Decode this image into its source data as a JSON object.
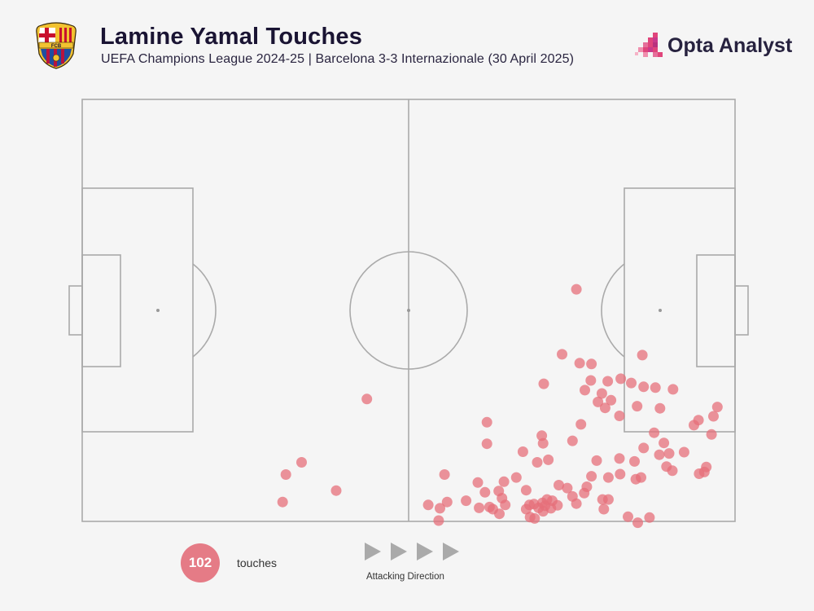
{
  "header": {
    "title": "Lamine Yamal Touches",
    "subtitle": "UEFA Champions League 2024-25 | Barcelona 3-3 Internazionale (30 April 2025)"
  },
  "brand": {
    "name": "Opta Analyst",
    "crest_name": "FC Barcelona crest",
    "crest_letters": "FCB"
  },
  "colors": {
    "touch_dot": "#e56f7a",
    "pitch_lines": "#aaaaaa",
    "background": "#f5f5f5",
    "title": "#1a1433",
    "brand_pink": "#e0457b",
    "crest_blue": "#1f4ea1",
    "crest_red": "#b8133e",
    "crest_gold": "#f2c230"
  },
  "legend": {
    "count": "102",
    "count_label": "touches",
    "direction_label": "Attacking Direction"
  },
  "chart_data": {
    "type": "scatter",
    "title": "Lamine Yamal Touches",
    "xlabel": "",
    "ylabel": "",
    "xlim": [
      0,
      100
    ],
    "ylim": [
      0,
      100
    ],
    "x_direction": "left-to-right attacking",
    "y_origin": "top touchline",
    "total_touches": 102,
    "points": [
      {
        "x": 43.6,
        "y": 71.0
      },
      {
        "x": 33.6,
        "y": 86.0
      },
      {
        "x": 31.2,
        "y": 88.9
      },
      {
        "x": 30.7,
        "y": 95.4
      },
      {
        "x": 38.9,
        "y": 92.7
      },
      {
        "x": 75.7,
        "y": 45.0
      },
      {
        "x": 73.5,
        "y": 60.4
      },
      {
        "x": 76.2,
        "y": 62.5
      },
      {
        "x": 78.0,
        "y": 62.7
      },
      {
        "x": 85.8,
        "y": 60.6
      },
      {
        "x": 70.7,
        "y": 67.4
      },
      {
        "x": 77.9,
        "y": 66.6
      },
      {
        "x": 80.5,
        "y": 66.8
      },
      {
        "x": 77.0,
        "y": 68.9
      },
      {
        "x": 79.6,
        "y": 69.7
      },
      {
        "x": 82.5,
        "y": 66.2
      },
      {
        "x": 84.1,
        "y": 67.2
      },
      {
        "x": 86.0,
        "y": 68.1
      },
      {
        "x": 87.8,
        "y": 68.3
      },
      {
        "x": 90.5,
        "y": 68.7
      },
      {
        "x": 79.0,
        "y": 71.7
      },
      {
        "x": 81.0,
        "y": 71.3
      },
      {
        "x": 85.0,
        "y": 72.7
      },
      {
        "x": 88.5,
        "y": 73.2
      },
      {
        "x": 94.4,
        "y": 76.0
      },
      {
        "x": 96.7,
        "y": 75.1
      },
      {
        "x": 97.3,
        "y": 72.9
      },
      {
        "x": 93.7,
        "y": 77.2
      },
      {
        "x": 96.4,
        "y": 79.4
      },
      {
        "x": 89.1,
        "y": 81.4
      },
      {
        "x": 87.6,
        "y": 79.0
      },
      {
        "x": 80.1,
        "y": 73.1
      },
      {
        "x": 82.3,
        "y": 75.0
      },
      {
        "x": 76.4,
        "y": 77.0
      },
      {
        "x": 75.1,
        "y": 80.9
      },
      {
        "x": 70.4,
        "y": 79.7
      },
      {
        "x": 70.6,
        "y": 81.5
      },
      {
        "x": 78.8,
        "y": 85.6
      },
      {
        "x": 82.3,
        "y": 85.1
      },
      {
        "x": 84.6,
        "y": 85.8
      },
      {
        "x": 86.0,
        "y": 82.6
      },
      {
        "x": 89.9,
        "y": 83.9
      },
      {
        "x": 92.2,
        "y": 83.6
      },
      {
        "x": 88.4,
        "y": 84.2
      },
      {
        "x": 95.6,
        "y": 87.1
      },
      {
        "x": 95.3,
        "y": 88.3
      },
      {
        "x": 94.5,
        "y": 88.7
      },
      {
        "x": 89.5,
        "y": 87.0
      },
      {
        "x": 90.4,
        "y": 88.0
      },
      {
        "x": 85.6,
        "y": 89.6
      },
      {
        "x": 82.4,
        "y": 88.8
      },
      {
        "x": 80.6,
        "y": 89.6
      },
      {
        "x": 78.0,
        "y": 89.3
      },
      {
        "x": 73.0,
        "y": 91.4
      },
      {
        "x": 74.3,
        "y": 92.1
      },
      {
        "x": 76.9,
        "y": 93.3
      },
      {
        "x": 75.1,
        "y": 94.1
      },
      {
        "x": 71.2,
        "y": 94.8
      },
      {
        "x": 72.0,
        "y": 95.1
      },
      {
        "x": 70.5,
        "y": 95.6
      },
      {
        "x": 69.2,
        "y": 95.9
      },
      {
        "x": 68.5,
        "y": 96.1
      },
      {
        "x": 68.0,
        "y": 97.1
      },
      {
        "x": 69.9,
        "y": 96.8
      },
      {
        "x": 70.9,
        "y": 96.3
      },
      {
        "x": 71.8,
        "y": 96.9
      },
      {
        "x": 72.8,
        "y": 96.2
      },
      {
        "x": 75.7,
        "y": 95.8
      },
      {
        "x": 79.9,
        "y": 97.1
      },
      {
        "x": 80.6,
        "y": 94.8
      },
      {
        "x": 79.7,
        "y": 94.8
      },
      {
        "x": 83.6,
        "y": 98.9
      },
      {
        "x": 85.1,
        "y": 100.3
      },
      {
        "x": 86.9,
        "y": 99.1
      },
      {
        "x": 84.8,
        "y": 90.0
      },
      {
        "x": 70.6,
        "y": 97.6
      },
      {
        "x": 69.3,
        "y": 99.3
      },
      {
        "x": 68.6,
        "y": 99.0
      },
      {
        "x": 68.0,
        "y": 92.6
      },
      {
        "x": 66.5,
        "y": 89.6
      },
      {
        "x": 64.6,
        "y": 90.6
      },
      {
        "x": 63.8,
        "y": 92.8
      },
      {
        "x": 64.3,
        "y": 94.5
      },
      {
        "x": 64.8,
        "y": 96.1
      },
      {
        "x": 62.9,
        "y": 97.1
      },
      {
        "x": 63.9,
        "y": 98.2
      },
      {
        "x": 62.4,
        "y": 96.6
      },
      {
        "x": 60.8,
        "y": 96.8
      },
      {
        "x": 61.7,
        "y": 93.1
      },
      {
        "x": 60.6,
        "y": 90.8
      },
      {
        "x": 55.9,
        "y": 95.4
      },
      {
        "x": 53.0,
        "y": 96.1
      },
      {
        "x": 54.8,
        "y": 96.9
      },
      {
        "x": 54.6,
        "y": 99.8
      },
      {
        "x": 55.5,
        "y": 88.9
      },
      {
        "x": 62.0,
        "y": 81.6
      },
      {
        "x": 62.0,
        "y": 76.5
      },
      {
        "x": 67.5,
        "y": 83.5
      },
      {
        "x": 71.4,
        "y": 85.4
      },
      {
        "x": 69.7,
        "y": 86.0
      },
      {
        "x": 58.8,
        "y": 95.1
      },
      {
        "x": 77.3,
        "y": 91.8
      }
    ]
  }
}
